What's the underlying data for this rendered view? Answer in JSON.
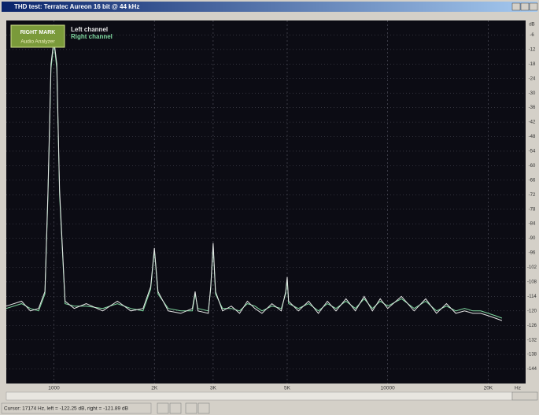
{
  "window_title": "THD test: Terratec Aureon 16 bit @ 44 kHz",
  "logo": {
    "top": "RIGHT MARK",
    "bottom": "Audio Analyzer"
  },
  "status": "Cursor: 17174 Hz, left = -122.25 dB, right = -121.89 dB",
  "chart_data": {
    "type": "line",
    "x_label": "Hz",
    "y_label": "dB",
    "x": [
      720,
      800,
      850,
      900,
      940,
      960,
      980,
      1000,
      1020,
      1040,
      1080,
      1150,
      1250,
      1400,
      1550,
      1700,
      1850,
      1950,
      2000,
      2050,
      2200,
      2400,
      2600,
      2650,
      2700,
      2900,
      2950,
      3000,
      3050,
      3200,
      3400,
      3600,
      3800,
      4000,
      4200,
      4500,
      4800,
      4950,
      5000,
      5050,
      5400,
      5800,
      6200,
      6600,
      7000,
      7500,
      8000,
      8500,
      9000,
      9500,
      10000,
      11000,
      12000,
      13000,
      14000,
      15000,
      16000,
      17000,
      18000,
      19000,
      20000,
      21000,
      22000
    ],
    "series": [
      {
        "name": "Left channel",
        "color": "#e6e6e6",
        "values": [
          -118,
          -116,
          -120,
          -119,
          -112,
          -70,
          -18,
          -8,
          -18,
          -70,
          -116,
          -119,
          -117,
          -120,
          -116,
          -120,
          -119,
          -110,
          -94,
          -112,
          -120,
          -121,
          -119,
          -112,
          -120,
          -121,
          -110,
          -92,
          -112,
          -120,
          -118,
          -121,
          -116,
          -119,
          -121,
          -117,
          -120,
          -112,
          -106,
          -116,
          -120,
          -116,
          -121,
          -116,
          -120,
          -115,
          -120,
          -114,
          -120,
          -115,
          -119,
          -114,
          -120,
          -115,
          -121,
          -117,
          -121,
          -120,
          -121,
          -121,
          -122,
          -123,
          -124
        ]
      },
      {
        "name": "Right channel",
        "color": "#7fd9a0",
        "values": [
          -119,
          -117,
          -119,
          -120,
          -113,
          -72,
          -20,
          -9,
          -20,
          -72,
          -117,
          -118,
          -118,
          -119,
          -117,
          -119,
          -120,
          -111,
          -95,
          -113,
          -119,
          -120,
          -120,
          -113,
          -119,
          -120,
          -111,
          -93,
          -113,
          -119,
          -119,
          -120,
          -117,
          -118,
          -120,
          -118,
          -119,
          -113,
          -107,
          -117,
          -119,
          -117,
          -120,
          -117,
          -119,
          -116,
          -119,
          -115,
          -119,
          -116,
          -118,
          -115,
          -119,
          -116,
          -120,
          -118,
          -120,
          -119,
          -120,
          -120,
          -121,
          -122,
          -123
        ]
      }
    ],
    "log_x": true,
    "grid": true,
    "legend": "upper left",
    "xlim": [
      720,
      25900
    ],
    "xticks": [
      1000,
      {
        "value": 2000,
        "label": "2K"
      },
      {
        "value": 3000,
        "label": "3K"
      },
      {
        "value": 5000,
        "label": "5K"
      },
      10000,
      {
        "value": 20000,
        "label": "20K"
      }
    ],
    "ylim": [
      -150,
      0
    ],
    "yticks": [
      -6,
      -12,
      -18,
      -24,
      -30,
      -36,
      -42,
      -48,
      -54,
      -60,
      -66,
      -72,
      -78,
      -84,
      -90,
      -96,
      -102,
      -108,
      -114,
      -120,
      -126,
      -132,
      -138,
      -144
    ]
  }
}
